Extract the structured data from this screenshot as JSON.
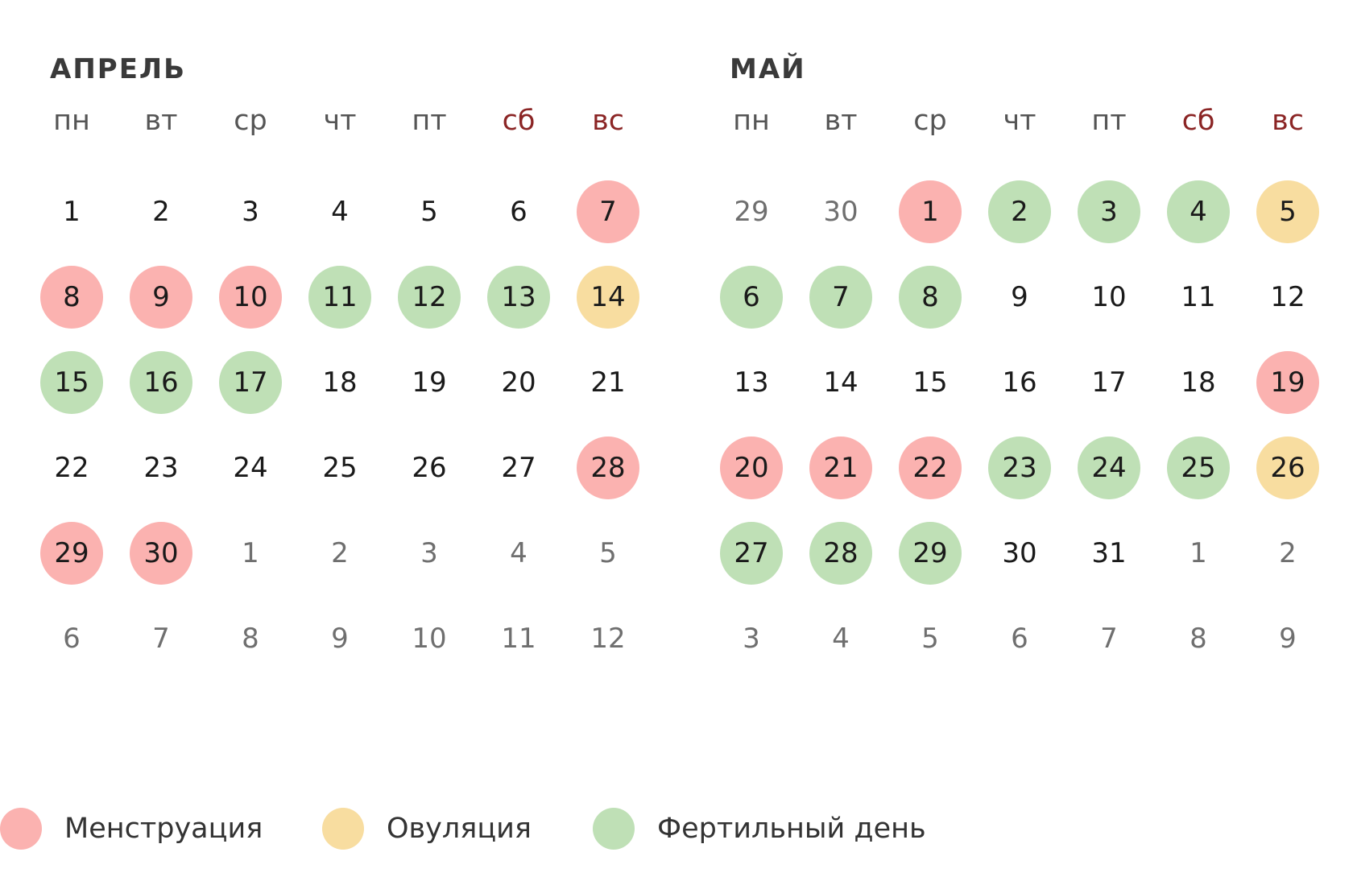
{
  "weekdays": [
    {
      "label": "пн",
      "weekend": false
    },
    {
      "label": "вт",
      "weekend": false
    },
    {
      "label": "ср",
      "weekend": false
    },
    {
      "label": "чт",
      "weekend": false
    },
    {
      "label": "пт",
      "weekend": false
    },
    {
      "label": "сб",
      "weekend": true
    },
    {
      "label": "вс",
      "weekend": true
    }
  ],
  "colors": {
    "menstruation": "#fbb2b0",
    "ovulation": "#f8dda0",
    "fertile": "#bfe0b6",
    "weekend_text": "#8b2525"
  },
  "months": [
    {
      "title": "АПРЕЛЬ",
      "weeks": [
        [
          {
            "d": "1"
          },
          {
            "d": "2"
          },
          {
            "d": "3"
          },
          {
            "d": "4"
          },
          {
            "d": "5"
          },
          {
            "d": "6"
          },
          {
            "d": "7",
            "m": "menstruation"
          }
        ],
        [
          {
            "d": "8",
            "m": "menstruation"
          },
          {
            "d": "9",
            "m": "menstruation"
          },
          {
            "d": "10",
            "m": "menstruation"
          },
          {
            "d": "11",
            "m": "fertile"
          },
          {
            "d": "12",
            "m": "fertile"
          },
          {
            "d": "13",
            "m": "fertile"
          },
          {
            "d": "14",
            "m": "ovulation"
          }
        ],
        [
          {
            "d": "15",
            "m": "fertile"
          },
          {
            "d": "16",
            "m": "fertile"
          },
          {
            "d": "17",
            "m": "fertile"
          },
          {
            "d": "18"
          },
          {
            "d": "19"
          },
          {
            "d": "20"
          },
          {
            "d": "21"
          }
        ],
        [
          {
            "d": "22"
          },
          {
            "d": "23"
          },
          {
            "d": "24"
          },
          {
            "d": "25"
          },
          {
            "d": "26"
          },
          {
            "d": "27"
          },
          {
            "d": "28",
            "m": "menstruation"
          }
        ],
        [
          {
            "d": "29",
            "m": "menstruation"
          },
          {
            "d": "30",
            "m": "menstruation"
          },
          {
            "d": "1",
            "o": true
          },
          {
            "d": "2",
            "o": true
          },
          {
            "d": "3",
            "o": true
          },
          {
            "d": "4",
            "o": true
          },
          {
            "d": "5",
            "o": true
          }
        ],
        [
          {
            "d": "6",
            "o": true
          },
          {
            "d": "7",
            "o": true
          },
          {
            "d": "8",
            "o": true
          },
          {
            "d": "9",
            "o": true
          },
          {
            "d": "10",
            "o": true
          },
          {
            "d": "11",
            "o": true
          },
          {
            "d": "12",
            "o": true
          }
        ]
      ]
    },
    {
      "title": "МАЙ",
      "weeks": [
        [
          {
            "d": "29",
            "o": true
          },
          {
            "d": "30",
            "o": true
          },
          {
            "d": "1",
            "m": "menstruation"
          },
          {
            "d": "2",
            "m": "fertile"
          },
          {
            "d": "3",
            "m": "fertile"
          },
          {
            "d": "4",
            "m": "fertile"
          },
          {
            "d": "5",
            "m": "ovulation"
          }
        ],
        [
          {
            "d": "6",
            "m": "fertile"
          },
          {
            "d": "7",
            "m": "fertile"
          },
          {
            "d": "8",
            "m": "fertile"
          },
          {
            "d": "9"
          },
          {
            "d": "10"
          },
          {
            "d": "11"
          },
          {
            "d": "12"
          }
        ],
        [
          {
            "d": "13"
          },
          {
            "d": "14"
          },
          {
            "d": "15"
          },
          {
            "d": "16"
          },
          {
            "d": "17"
          },
          {
            "d": "18"
          },
          {
            "d": "19",
            "m": "menstruation"
          }
        ],
        [
          {
            "d": "20",
            "m": "menstruation"
          },
          {
            "d": "21",
            "m": "menstruation"
          },
          {
            "d": "22",
            "m": "menstruation"
          },
          {
            "d": "23",
            "m": "fertile"
          },
          {
            "d": "24",
            "m": "fertile"
          },
          {
            "d": "25",
            "m": "fertile"
          },
          {
            "d": "26",
            "m": "ovulation"
          }
        ],
        [
          {
            "d": "27",
            "m": "fertile"
          },
          {
            "d": "28",
            "m": "fertile"
          },
          {
            "d": "29",
            "m": "fertile"
          },
          {
            "d": "30"
          },
          {
            "d": "31"
          },
          {
            "d": "1",
            "o": true
          },
          {
            "d": "2",
            "o": true
          }
        ],
        [
          {
            "d": "3",
            "o": true
          },
          {
            "d": "4",
            "o": true
          },
          {
            "d": "5",
            "o": true
          },
          {
            "d": "6",
            "o": true
          },
          {
            "d": "7",
            "o": true
          },
          {
            "d": "8",
            "o": true
          },
          {
            "d": "9",
            "o": true
          }
        ]
      ]
    }
  ],
  "legend": {
    "menstruation": "Менструация",
    "ovulation": "Овуляция",
    "fertile": "Фертильный день"
  }
}
